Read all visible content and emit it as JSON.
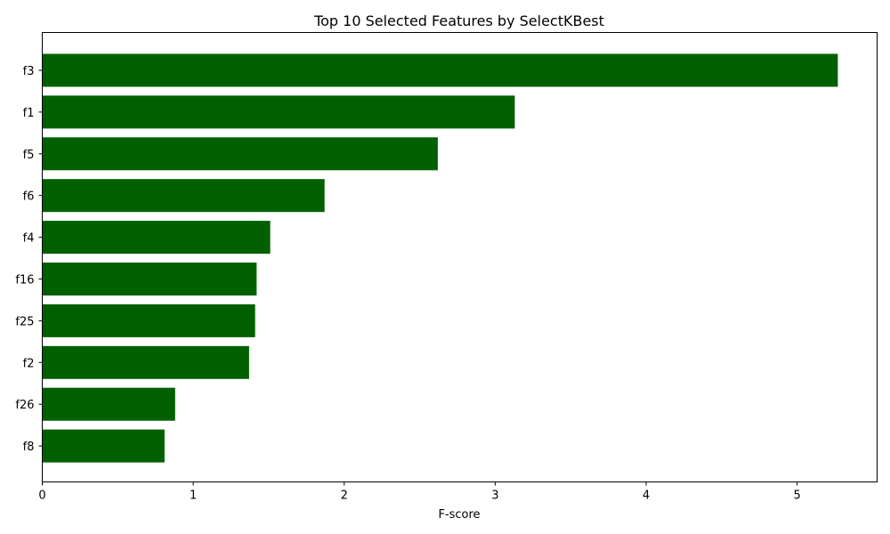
{
  "chart_data": {
    "type": "bar",
    "orientation": "horizontal",
    "title": "Top 10 Selected Features by SelectKBest",
    "xlabel": "F-score",
    "ylabel": "",
    "xlim": [
      0,
      5.53
    ],
    "xticks": [
      0,
      1,
      2,
      3,
      4,
      5
    ],
    "grid": false,
    "bar_color": "#006000",
    "categories": [
      "f3",
      "f1",
      "f5",
      "f6",
      "f4",
      "f16",
      "f25",
      "f2",
      "f26",
      "f8"
    ],
    "values": [
      5.27,
      3.13,
      2.62,
      1.87,
      1.51,
      1.42,
      1.41,
      1.37,
      0.88,
      0.81
    ]
  }
}
